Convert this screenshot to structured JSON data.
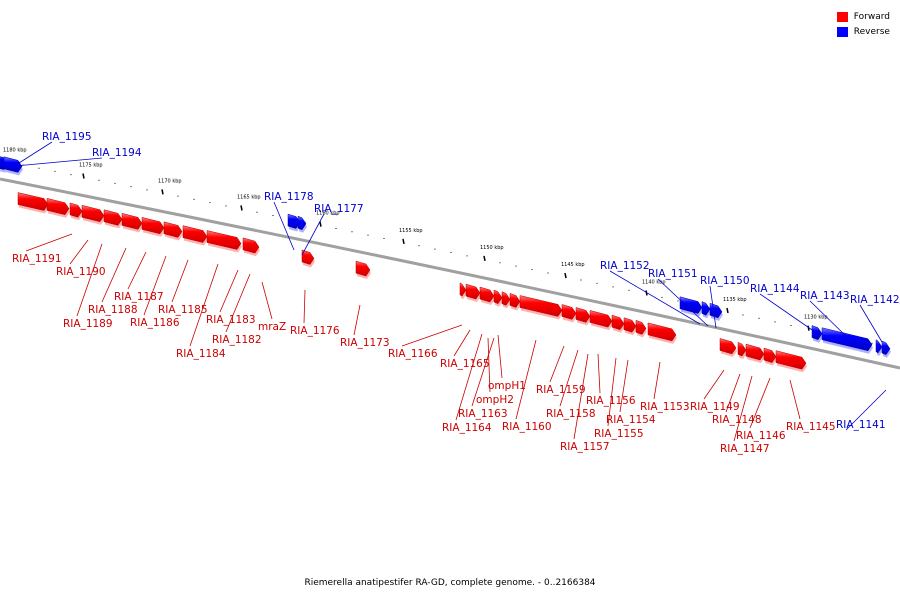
{
  "legend": {
    "forward_label": "Forward",
    "reverse_label": "Reverse",
    "forward_color": "#ff0000",
    "reverse_color": "#0000ff"
  },
  "caption": "Riemerella anatipestifer RA-GD, complete genome. - 0..2166384",
  "ticks": [
    "1180 kbp",
    "1175 kbp",
    "1170 kbp",
    "1165 kbp",
    "1160 kbp",
    "1155 kbp",
    "1150 kbp",
    "1145 kbp",
    "1140 kbp",
    "1135 kbp",
    "1130 kbp"
  ],
  "genes": [
    {
      "name": "RIA_1195",
      "strand": "reverse"
    },
    {
      "name": "RIA_1194",
      "strand": "reverse"
    },
    {
      "name": "RIA_1191",
      "strand": "forward"
    },
    {
      "name": "RIA_1190",
      "strand": "forward"
    },
    {
      "name": "RIA_1189",
      "strand": "forward"
    },
    {
      "name": "RIA_1188",
      "strand": "forward"
    },
    {
      "name": "RIA_1187",
      "strand": "forward"
    },
    {
      "name": "RIA_1186",
      "strand": "forward"
    },
    {
      "name": "RIA_1185",
      "strand": "forward"
    },
    {
      "name": "RIA_1184",
      "strand": "forward"
    },
    {
      "name": "RIA_1183",
      "strand": "forward"
    },
    {
      "name": "RIA_1182",
      "strand": "forward"
    },
    {
      "name": "mraZ",
      "strand": "forward"
    },
    {
      "name": "RIA_1178",
      "strand": "reverse"
    },
    {
      "name": "RIA_1177",
      "strand": "reverse"
    },
    {
      "name": "RIA_1176",
      "strand": "forward"
    },
    {
      "name": "RIA_1173",
      "strand": "forward"
    },
    {
      "name": "RIA_1166",
      "strand": "forward"
    },
    {
      "name": "RIA_1165",
      "strand": "forward"
    },
    {
      "name": "ompH1",
      "strand": "forward"
    },
    {
      "name": "ompH2",
      "strand": "forward"
    },
    {
      "name": "RIA_1163",
      "strand": "forward"
    },
    {
      "name": "RIA_1164",
      "strand": "forward"
    },
    {
      "name": "RIA_1160",
      "strand": "forward"
    },
    {
      "name": "RIA_1159",
      "strand": "forward"
    },
    {
      "name": "RIA_1158",
      "strand": "forward"
    },
    {
      "name": "RIA_1157",
      "strand": "forward"
    },
    {
      "name": "RIA_1156",
      "strand": "forward"
    },
    {
      "name": "RIA_1155",
      "strand": "forward"
    },
    {
      "name": "RIA_1154",
      "strand": "forward"
    },
    {
      "name": "RIA_1153",
      "strand": "forward"
    },
    {
      "name": "RIA_1152",
      "strand": "reverse"
    },
    {
      "name": "RIA_1151",
      "strand": "reverse"
    },
    {
      "name": "RIA_1150",
      "strand": "reverse"
    },
    {
      "name": "RIA_1149",
      "strand": "forward"
    },
    {
      "name": "RIA_1148",
      "strand": "forward"
    },
    {
      "name": "RIA_1147",
      "strand": "forward"
    },
    {
      "name": "RIA_1146",
      "strand": "forward"
    },
    {
      "name": "RIA_1145",
      "strand": "forward"
    },
    {
      "name": "RIA_1144",
      "strand": "reverse"
    },
    {
      "name": "RIA_1143",
      "strand": "reverse"
    },
    {
      "name": "RIA_1142",
      "strand": "reverse"
    },
    {
      "name": "RIA_1141",
      "strand": "reverse"
    }
  ]
}
